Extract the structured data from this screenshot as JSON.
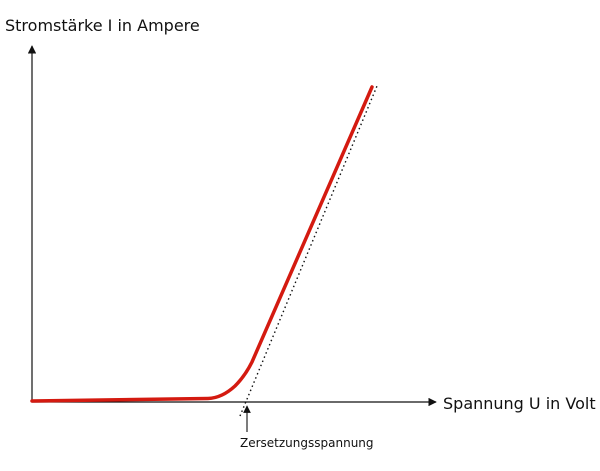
{
  "y_axis_label": "Stromstärke I in Ampere",
  "x_axis_label": "Spannung U in Volt",
  "annotation": "Zersetzungsspannung"
}
